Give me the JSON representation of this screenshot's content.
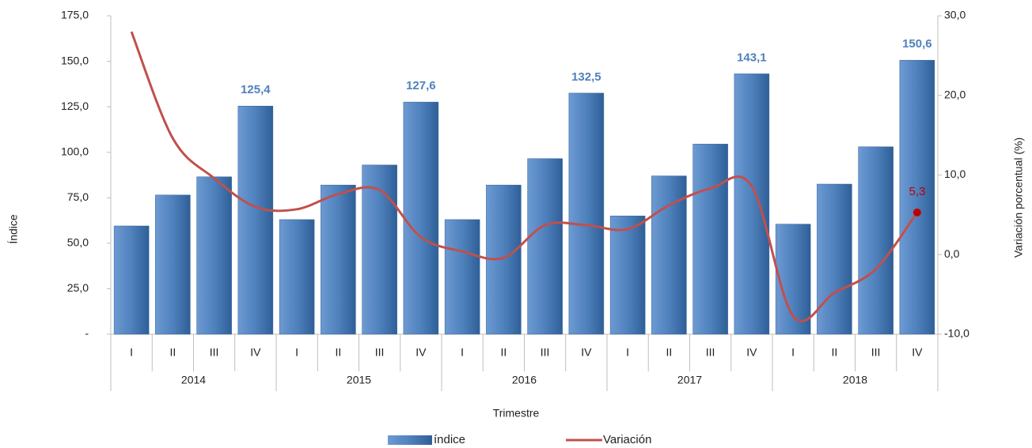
{
  "chart_data": {
    "type": "bar_line",
    "x_title": "Trimestre",
    "y_title": "Índice",
    "y2_title": "Variación porcentual (%)",
    "categories": [
      "I",
      "II",
      "III",
      "IV",
      "I",
      "II",
      "III",
      "IV",
      "I",
      "II",
      "III",
      "IV",
      "I",
      "II",
      "III",
      "IV",
      "I",
      "II",
      "III",
      "IV"
    ],
    "years": [
      "2014",
      "2015",
      "2016",
      "2017",
      "2018"
    ],
    "series": [
      {
        "name": "índice",
        "type": "bar",
        "color": "#4f81bd",
        "values": [
          59.5,
          76.5,
          86.5,
          125.4,
          63,
          82,
          93,
          127.6,
          63,
          82,
          96.5,
          132.5,
          65,
          87,
          104.5,
          143.1,
          60.5,
          82.5,
          103,
          150.6
        ],
        "value_labels": [
          null,
          null,
          null,
          "125,4",
          null,
          null,
          null,
          "127,6",
          null,
          null,
          null,
          "132,5",
          null,
          null,
          null,
          "143,1",
          null,
          null,
          null,
          "150,6"
        ]
      },
      {
        "name": "Variación",
        "type": "line",
        "axis": "y2",
        "color": "#c0504d",
        "values": [
          28,
          14.6,
          9.6,
          6,
          5.7,
          7.6,
          8.1,
          2.2,
          0.4,
          -0.4,
          3.7,
          3.7,
          3.2,
          6.2,
          8.3,
          8.6,
          -7.7,
          -4.8,
          -1.8,
          5.3
        ],
        "value_labels": [
          null,
          null,
          null,
          null,
          null,
          null,
          null,
          null,
          null,
          null,
          null,
          null,
          null,
          null,
          null,
          null,
          null,
          null,
          null,
          "5,3"
        ]
      }
    ],
    "ylim": [
      0,
      175
    ],
    "yticks": [
      {
        "value": 0,
        "label": "-"
      },
      {
        "value": 25,
        "label": "25,0"
      },
      {
        "value": 50,
        "label": "50,0"
      },
      {
        "value": 75,
        "label": "75,0"
      },
      {
        "value": 100,
        "label": "100,0"
      },
      {
        "value": 125,
        "label": "125,0"
      },
      {
        "value": 150,
        "label": "150,0"
      },
      {
        "value": 175,
        "label": "175,0"
      }
    ],
    "y2lim": [
      -10,
      30
    ],
    "y2ticks": [
      {
        "value": -10,
        "label": "-10,0"
      },
      {
        "value": 0,
        "label": "0,0"
      },
      {
        "value": 10,
        "label": "10,0"
      },
      {
        "value": 20,
        "label": "20,0"
      },
      {
        "value": 30,
        "label": "30,0"
      }
    ],
    "legend": "bottom"
  }
}
